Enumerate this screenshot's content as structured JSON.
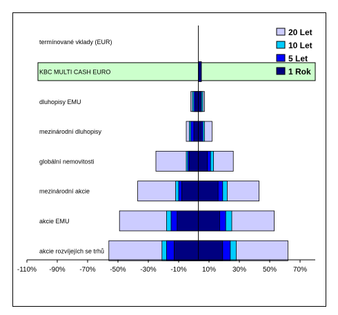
{
  "chart_data": {
    "type": "bar",
    "orientation": "horizontal",
    "stacking": "nested ranges around the axis (each horizon drawn as a range, longer horizons behind shorter ones)",
    "categories": [
      "termínované vklady (EUR)",
      "KBC MULTI CASH EURO",
      "dluhopisy EMU",
      "mezinárodní dluhopisy",
      "globální nemovitosti",
      "mezinárodní akcie",
      "akcie EMU",
      "akcie rozvíjejích se trhů"
    ],
    "highlighted_category": "KBC MULTI CASH EURO",
    "series": [
      {
        "name": "20 Let",
        "color": "#ccccff",
        "ranges": [
          [
            0,
            0
          ],
          [
            0,
            0
          ],
          [
            -2,
            7
          ],
          [
            -5,
            12
          ],
          [
            -25,
            26
          ],
          [
            -37,
            43
          ],
          [
            -49,
            53
          ],
          [
            -56,
            62
          ]
        ]
      },
      {
        "name": "10 Let",
        "color": "#00ccff",
        "ranges": [
          [
            0,
            0
          ],
          [
            0,
            0
          ],
          [
            -1,
            6
          ],
          [
            -3,
            7
          ],
          [
            -5,
            13
          ],
          [
            -12,
            22
          ],
          [
            -18,
            25
          ],
          [
            -21,
            28
          ]
        ]
      },
      {
        "name": "5 Let",
        "color": "#0000ff",
        "ranges": [
          [
            0,
            0
          ],
          [
            0,
            0
          ],
          [
            0,
            5
          ],
          [
            -2,
            6
          ],
          [
            -4,
            11
          ],
          [
            -10,
            19
          ],
          [
            -15,
            21
          ],
          [
            -18,
            24
          ]
        ]
      },
      {
        "name": "1 Rok",
        "color": "#000080",
        "ranges": [
          [
            0,
            0
          ],
          [
            3,
            5
          ],
          [
            1,
            5
          ],
          [
            0,
            5
          ],
          [
            -3,
            9
          ],
          [
            -8,
            16
          ],
          [
            -11,
            17
          ],
          [
            -13,
            19
          ]
        ]
      }
    ],
    "reference_line_at": 3,
    "xlim": [
      -110,
      80
    ],
    "x_ticks": [
      -110,
      -90,
      -70,
      -50,
      -30,
      -10,
      10,
      30,
      50,
      70
    ],
    "x_tick_labels": [
      "-110%",
      "-90%",
      "-70%",
      "-50%",
      "-30%",
      "-10%",
      "10%",
      "30%",
      "50%",
      "70%"
    ],
    "legend_position": "top-right",
    "grid": false
  }
}
